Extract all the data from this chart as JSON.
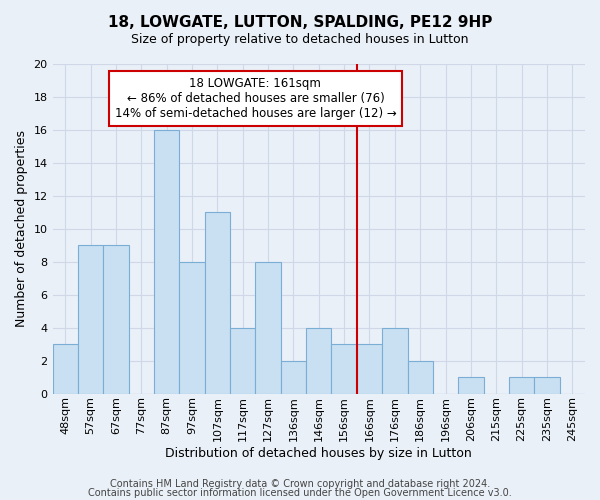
{
  "title": "18, LOWGATE, LUTTON, SPALDING, PE12 9HP",
  "subtitle": "Size of property relative to detached houses in Lutton",
  "xlabel": "Distribution of detached houses by size in Lutton",
  "ylabel": "Number of detached properties",
  "bar_labels": [
    "48sqm",
    "57sqm",
    "67sqm",
    "77sqm",
    "87sqm",
    "97sqm",
    "107sqm",
    "117sqm",
    "127sqm",
    "136sqm",
    "146sqm",
    "156sqm",
    "166sqm",
    "176sqm",
    "186sqm",
    "196sqm",
    "206sqm",
    "215sqm",
    "225sqm",
    "235sqm",
    "245sqm"
  ],
  "bar_values": [
    3,
    9,
    9,
    0,
    16,
    8,
    11,
    4,
    8,
    2,
    4,
    3,
    3,
    4,
    2,
    0,
    1,
    0,
    1,
    1,
    0
  ],
  "bar_color": "#c9dff2",
  "bar_edge_color": "#7aaed4",
  "vline_color": "#cc0000",
  "annotation_title": "18 LOWGATE: 161sqm",
  "annotation_line1": "← 86% of detached houses are smaller (76)",
  "annotation_line2": "14% of semi-detached houses are larger (12) →",
  "annotation_box_color": "#ffffff",
  "annotation_box_edge": "#cc0000",
  "ylim": [
    0,
    20
  ],
  "yticks": [
    0,
    2,
    4,
    6,
    8,
    10,
    12,
    14,
    16,
    18,
    20
  ],
  "grid_color": "#d0d8e8",
  "footer1": "Contains HM Land Registry data © Crown copyright and database right 2024.",
  "footer2": "Contains public sector information licensed under the Open Government Licence v3.0.",
  "background_color": "#eaf0f8",
  "title_fontsize": 11,
  "subtitle_fontsize": 9,
  "axis_label_fontsize": 9,
  "tick_fontsize": 8,
  "annotation_fontsize": 8.5,
  "footer_fontsize": 7
}
